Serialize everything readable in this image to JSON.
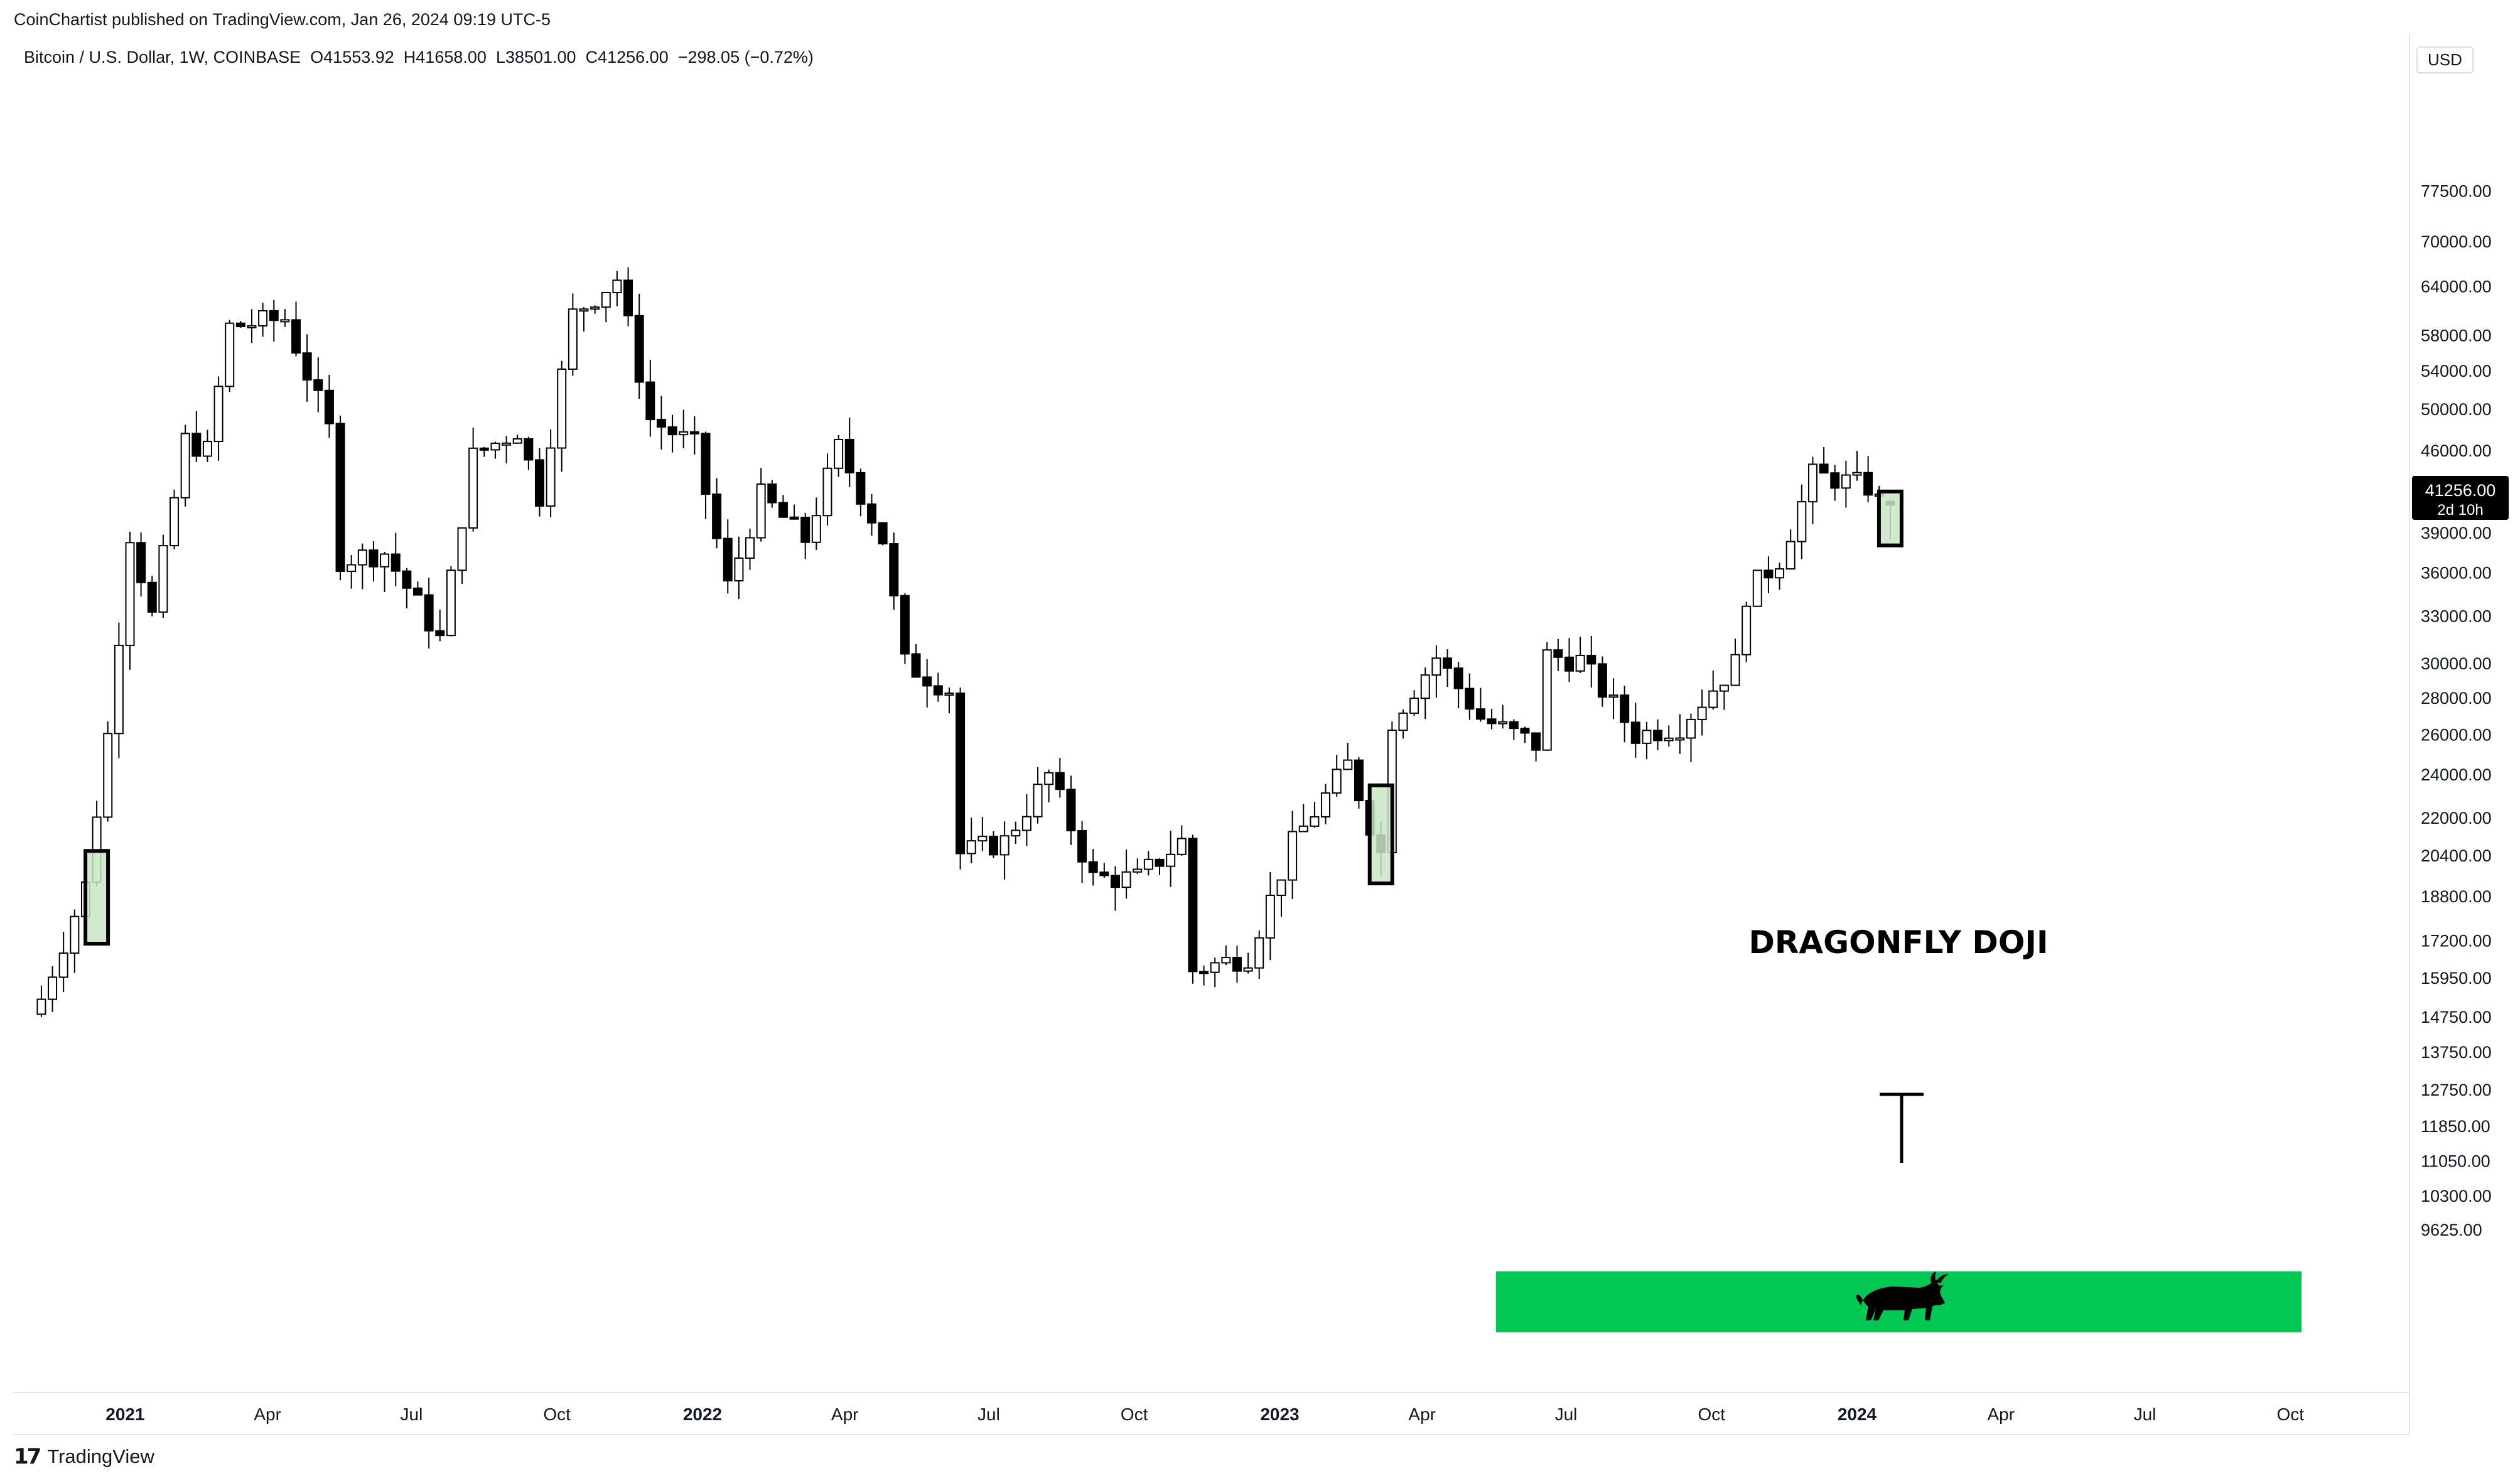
{
  "header": {
    "publisher": "CoinChartist published on TradingView.com, Jan 26, 2024 09:19 UTC-5",
    "symbol": "Bitcoin / U.S. Dollar, 1W, COINBASE",
    "ohlc": {
      "open": "O41553.92",
      "high": "H41658.00",
      "low": "L38501.00",
      "close": "C41256.00",
      "change": "−298.05 (−0.72%)"
    }
  },
  "price_axis": {
    "currency": "USD"
  },
  "last_price": {
    "value": "41256.00",
    "countdown": "2d 10h"
  },
  "footer": {
    "logo_text": "TradingView"
  },
  "colors": {
    "bull_body": "#ffffff",
    "bear_body": "#000000",
    "wick": "#000000",
    "highlight_fill": "#c9e6c4",
    "bull_zone": "#00c853",
    "axis_text": "#131722"
  },
  "icons": {
    "bull_zone_icon": "bull-icon",
    "tv_logo": "tradingview-logo-icon"
  },
  "chart_data": {
    "type": "candlestick",
    "interval": "1W",
    "scale": "log",
    "x_axis_labels": [
      "2021",
      "Apr",
      "Jul",
      "Oct",
      "2022",
      "Apr",
      "Jul",
      "Oct",
      "2023",
      "Apr",
      "Jul",
      "Oct",
      "2024",
      "Apr",
      "Jul",
      "Oct"
    ],
    "y_axis_labels": [
      77500,
      70000,
      64000,
      58000,
      54000,
      50000,
      46000,
      39000,
      36000,
      33000,
      30000,
      28000,
      26000,
      24000,
      22000,
      20400,
      18800,
      17200,
      15950,
      14750,
      13750,
      12750,
      11850,
      11050,
      10300,
      9625
    ],
    "anchors": [
      [
        "2020-11-09",
        15300
      ],
      [
        "2020-12-07",
        19200
      ],
      [
        "2020-12-21",
        26000
      ],
      [
        "2021-01-04",
        39000
      ],
      [
        "2021-01-18",
        33000
      ],
      [
        "2021-02-08",
        47000
      ],
      [
        "2021-02-22",
        46000
      ],
      [
        "2021-03-08",
        59000
      ],
      [
        "2021-04-12",
        60000
      ],
      [
        "2021-05-10",
        48000
      ],
      [
        "2021-05-17",
        37000
      ],
      [
        "2021-06-14",
        37500
      ],
      [
        "2021-07-19",
        31500
      ],
      [
        "2021-08-09",
        45500
      ],
      [
        "2021-09-06",
        48000
      ],
      [
        "2021-09-20",
        42000
      ],
      [
        "2021-10-11",
        60500
      ],
      [
        "2021-11-08",
        65000
      ],
      [
        "2021-11-29",
        49000
      ],
      [
        "2021-12-27",
        46500
      ],
      [
        "2022-01-17",
        35000
      ],
      [
        "2022-02-07",
        42000
      ],
      [
        "2022-03-07",
        38500
      ],
      [
        "2022-03-28",
        46300
      ],
      [
        "2022-04-25",
        38500
      ],
      [
        "2022-05-09",
        30000
      ],
      [
        "2022-06-06",
        28500
      ],
      [
        "2022-06-13",
        20500
      ],
      [
        "2022-07-11",
        21000
      ],
      [
        "2022-08-08",
        24000
      ],
      [
        "2022-09-05",
        19500
      ],
      [
        "2022-10-03",
        19500
      ],
      [
        "2022-10-31",
        21000
      ],
      [
        "2022-11-07",
        16200
      ],
      [
        "2022-12-12",
        16700
      ],
      [
        "2023-01-09",
        20900
      ],
      [
        "2023-02-13",
        24500
      ],
      [
        "2023-03-06",
        20500
      ],
      [
        "2023-03-13",
        26800
      ],
      [
        "2023-04-10",
        30400
      ],
      [
        "2023-05-08",
        26900
      ],
      [
        "2023-06-12",
        25500
      ],
      [
        "2023-06-19",
        30500
      ],
      [
        "2023-07-10",
        30200
      ],
      [
        "2023-08-14",
        26000
      ],
      [
        "2023-09-11",
        26500
      ],
      [
        "2023-10-16",
        30000
      ],
      [
        "2023-10-23",
        34500
      ],
      [
        "2023-11-13",
        37000
      ],
      [
        "2023-12-04",
        43800
      ],
      [
        "2023-12-18",
        43500
      ],
      [
        "2024-01-08",
        42800
      ],
      [
        "2024-01-15",
        41550
      ],
      [
        "2024-01-22",
        41256
      ]
    ],
    "last_candle": {
      "date": "2024-01-22",
      "open": 41553.92,
      "high": 41658.0,
      "low": 38501.0,
      "close": 41256.0
    },
    "annotation": "DRAGONFLY DOJI",
    "highlight_dates": [
      "2020-12-14",
      "2023-03-06",
      "2024-01-22"
    ]
  }
}
